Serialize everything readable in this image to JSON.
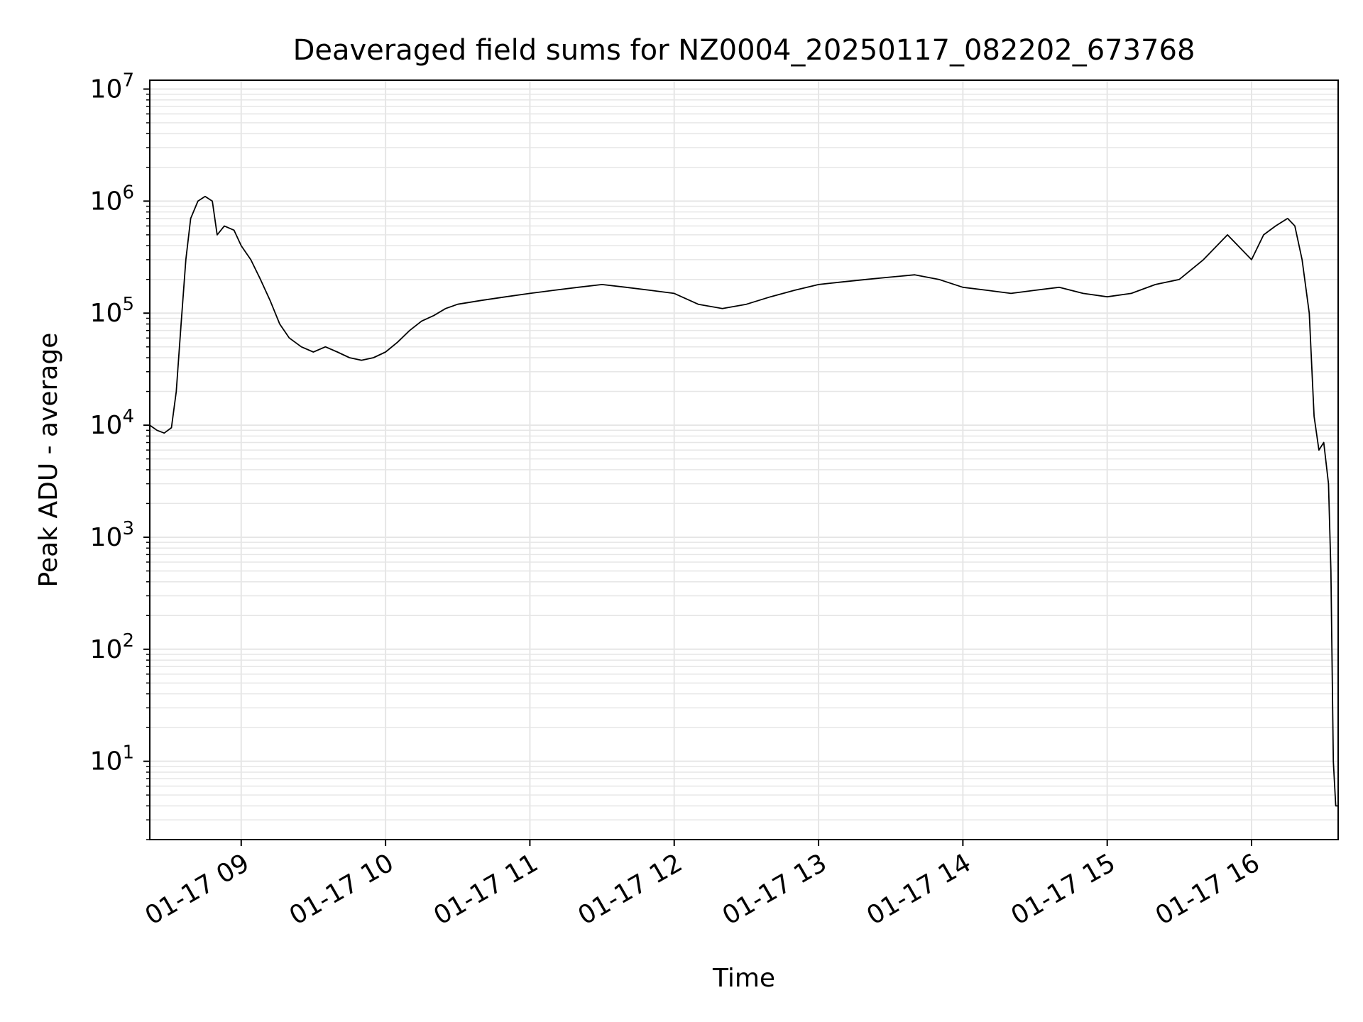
{
  "chart_data": {
    "type": "line",
    "title": "Deaveraged field sums for NZ0004_20250117_082202_673768",
    "xlabel": "Time",
    "ylabel": "Peak ADU - average",
    "yscale": "log",
    "xlim": [
      "2025-01-17 08:22",
      "2025-01-17 16:36"
    ],
    "ylim": [
      2,
      12000000
    ],
    "x_ticks": [
      {
        "time": "2025-01-17 09:00",
        "label": "01-17 09"
      },
      {
        "time": "2025-01-17 10:00",
        "label": "01-17 10"
      },
      {
        "time": "2025-01-17 11:00",
        "label": "01-17 11"
      },
      {
        "time": "2025-01-17 12:00",
        "label": "01-17 12"
      },
      {
        "time": "2025-01-17 13:00",
        "label": "01-17 13"
      },
      {
        "time": "2025-01-17 14:00",
        "label": "01-17 14"
      },
      {
        "time": "2025-01-17 15:00",
        "label": "01-17 15"
      },
      {
        "time": "2025-01-17 16:00",
        "label": "01-17 16"
      }
    ],
    "y_ticks": [
      {
        "value": 10,
        "base": "10",
        "exp": "1"
      },
      {
        "value": 100,
        "base": "10",
        "exp": "2"
      },
      {
        "value": 1000,
        "base": "10",
        "exp": "3"
      },
      {
        "value": 10000,
        "base": "10",
        "exp": "4"
      },
      {
        "value": 100000,
        "base": "10",
        "exp": "5"
      },
      {
        "value": 1000000,
        "base": "10",
        "exp": "6"
      },
      {
        "value": 10000000,
        "base": "10",
        "exp": "7"
      }
    ],
    "grid": true,
    "line_color": "#000000",
    "grid_color": "#e6e6e6",
    "series": [
      {
        "points": [
          [
            "2025-01-17 08:22",
            10000
          ],
          [
            "2025-01-17 08:25",
            9000
          ],
          [
            "2025-01-17 08:28",
            8500
          ],
          [
            "2025-01-17 08:31",
            9500
          ],
          [
            "2025-01-17 08:33",
            20000
          ],
          [
            "2025-01-17 08:35",
            80000
          ],
          [
            "2025-01-17 08:37",
            300000
          ],
          [
            "2025-01-17 08:39",
            700000
          ],
          [
            "2025-01-17 08:42",
            1000000
          ],
          [
            "2025-01-17 08:45",
            1100000
          ],
          [
            "2025-01-17 08:48",
            1000000
          ],
          [
            "2025-01-17 08:50",
            500000
          ],
          [
            "2025-01-17 08:53",
            600000
          ],
          [
            "2025-01-17 08:57",
            550000
          ],
          [
            "2025-01-17 09:00",
            400000
          ],
          [
            "2025-01-17 09:04",
            300000
          ],
          [
            "2025-01-17 09:08",
            200000
          ],
          [
            "2025-01-17 09:12",
            130000
          ],
          [
            "2025-01-17 09:16",
            80000
          ],
          [
            "2025-01-17 09:20",
            60000
          ],
          [
            "2025-01-17 09:25",
            50000
          ],
          [
            "2025-01-17 09:30",
            45000
          ],
          [
            "2025-01-17 09:35",
            50000
          ],
          [
            "2025-01-17 09:40",
            45000
          ],
          [
            "2025-01-17 09:45",
            40000
          ],
          [
            "2025-01-17 09:50",
            38000
          ],
          [
            "2025-01-17 09:55",
            40000
          ],
          [
            "2025-01-17 10:00",
            45000
          ],
          [
            "2025-01-17 10:05",
            55000
          ],
          [
            "2025-01-17 10:10",
            70000
          ],
          [
            "2025-01-17 10:15",
            85000
          ],
          [
            "2025-01-17 10:20",
            95000
          ],
          [
            "2025-01-17 10:25",
            110000
          ],
          [
            "2025-01-17 10:30",
            120000
          ],
          [
            "2025-01-17 10:40",
            130000
          ],
          [
            "2025-01-17 10:50",
            140000
          ],
          [
            "2025-01-17 11:00",
            150000
          ],
          [
            "2025-01-17 11:10",
            160000
          ],
          [
            "2025-01-17 11:20",
            170000
          ],
          [
            "2025-01-17 11:30",
            180000
          ],
          [
            "2025-01-17 11:40",
            170000
          ],
          [
            "2025-01-17 11:50",
            160000
          ],
          [
            "2025-01-17 12:00",
            150000
          ],
          [
            "2025-01-17 12:10",
            120000
          ],
          [
            "2025-01-17 12:20",
            110000
          ],
          [
            "2025-01-17 12:30",
            120000
          ],
          [
            "2025-01-17 12:40",
            140000
          ],
          [
            "2025-01-17 12:50",
            160000
          ],
          [
            "2025-01-17 13:00",
            180000
          ],
          [
            "2025-01-17 13:10",
            190000
          ],
          [
            "2025-01-17 13:20",
            200000
          ],
          [
            "2025-01-17 13:30",
            210000
          ],
          [
            "2025-01-17 13:40",
            220000
          ],
          [
            "2025-01-17 13:50",
            200000
          ],
          [
            "2025-01-17 14:00",
            170000
          ],
          [
            "2025-01-17 14:10",
            160000
          ],
          [
            "2025-01-17 14:20",
            150000
          ],
          [
            "2025-01-17 14:30",
            160000
          ],
          [
            "2025-01-17 14:40",
            170000
          ],
          [
            "2025-01-17 14:50",
            150000
          ],
          [
            "2025-01-17 15:00",
            140000
          ],
          [
            "2025-01-17 15:10",
            150000
          ],
          [
            "2025-01-17 15:20",
            180000
          ],
          [
            "2025-01-17 15:30",
            200000
          ],
          [
            "2025-01-17 15:40",
            300000
          ],
          [
            "2025-01-17 15:50",
            500000
          ],
          [
            "2025-01-17 16:00",
            300000
          ],
          [
            "2025-01-17 16:05",
            500000
          ],
          [
            "2025-01-17 16:10",
            600000
          ],
          [
            "2025-01-17 16:15",
            700000
          ],
          [
            "2025-01-17 16:18",
            600000
          ],
          [
            "2025-01-17 16:21",
            300000
          ],
          [
            "2025-01-17 16:24",
            100000
          ],
          [
            "2025-01-17 16:26",
            12000
          ],
          [
            "2025-01-17 16:28",
            6000
          ],
          [
            "2025-01-17 16:30",
            7000
          ],
          [
            "2025-01-17 16:32",
            3000
          ],
          [
            "2025-01-17 16:33",
            500
          ],
          [
            "2025-01-17 16:34",
            10
          ],
          [
            "2025-01-17 16:35",
            4
          ],
          [
            "2025-01-17 16:36",
            4
          ]
        ]
      }
    ]
  }
}
